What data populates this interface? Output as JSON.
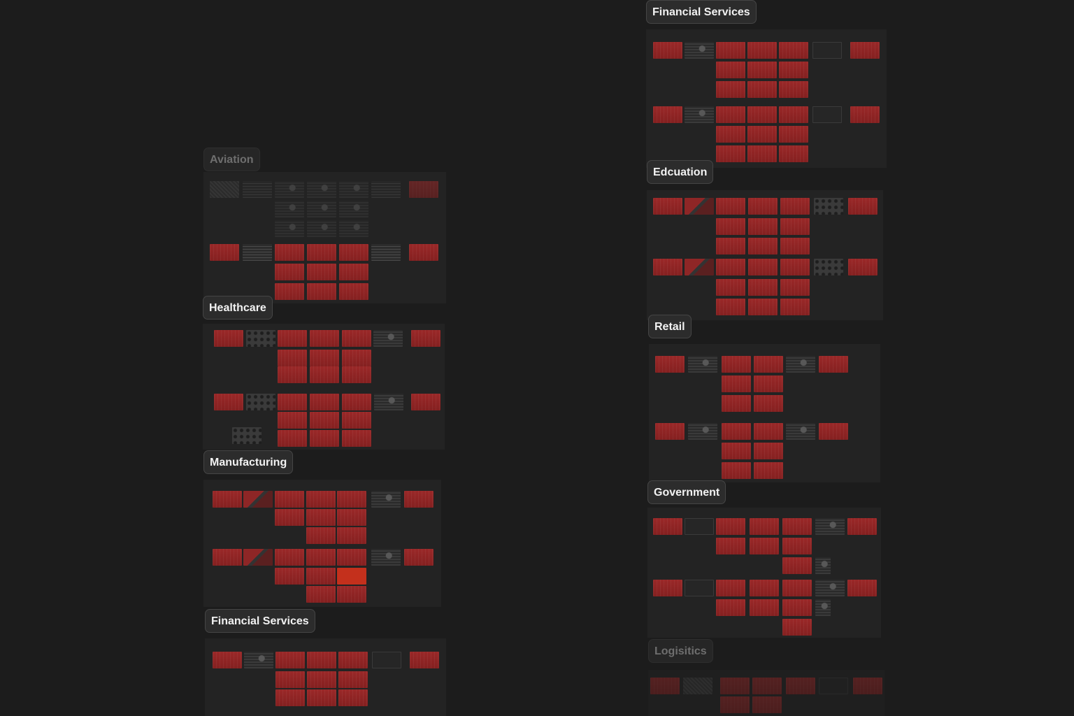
{
  "sections": [
    {
      "id": "financial-services-right",
      "label": "Financial Services"
    },
    {
      "id": "aviation",
      "label": "Aviation"
    },
    {
      "id": "edcuation",
      "label": "Edcuation"
    },
    {
      "id": "healthcare",
      "label": "Healthcare"
    },
    {
      "id": "retail",
      "label": "Retail"
    },
    {
      "id": "manufacturing",
      "label": "Manufacturing"
    },
    {
      "id": "government",
      "label": "Government"
    },
    {
      "id": "financial-services-left",
      "label": "Financial Services"
    },
    {
      "id": "logisitics",
      "label": "Logisitics"
    }
  ],
  "colors": {
    "background": "#1c1c1c",
    "panel": "#232323",
    "thumb_red": "#8e2424",
    "thumb_highlight": "#c4301c",
    "label_bg": "#2c2c2c",
    "label_text": "#f2f2f2"
  }
}
